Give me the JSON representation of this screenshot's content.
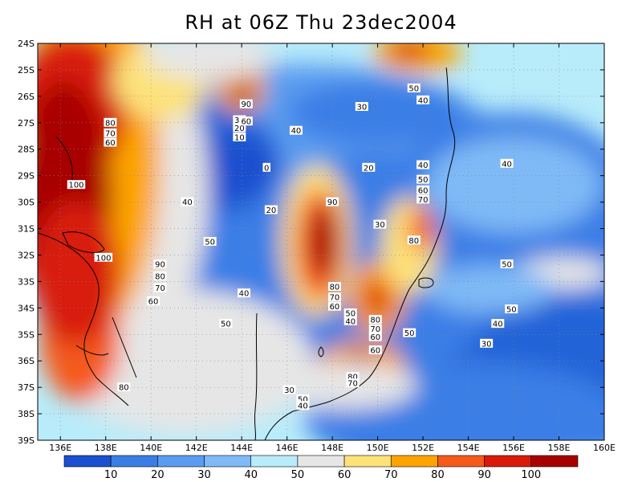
{
  "title": "RH at 06Z Thu 23dec2004",
  "colors": {
    "bands": [
      "#1a4fcf",
      "#2464d8",
      "#3a7ee6",
      "#5a9cf0",
      "#7fbaf7",
      "#b8ecfa",
      "#e6e6e6",
      "#fde27a",
      "#fda400",
      "#f55a1a",
      "#d81a0a",
      "#a80000"
    ],
    "coast": "#000000",
    "grid": "#888888"
  },
  "map": {
    "lat_labels": [
      "24S",
      "25S",
      "26S",
      "27S",
      "28S",
      "29S",
      "30S",
      "31S",
      "32S",
      "33S",
      "34S",
      "35S",
      "36S",
      "37S",
      "38S",
      "39S"
    ],
    "lon_labels": [
      "136E",
      "138E",
      "140E",
      "142E",
      "144E",
      "146E",
      "148E",
      "150E",
      "152E",
      "154E",
      "156E",
      "158E",
      "160E"
    ]
  },
  "colorbar": {
    "labels": [
      "10",
      "20",
      "30",
      "40",
      "50",
      "60",
      "70",
      "80",
      "90",
      "100"
    ]
  },
  "contour_labels": [
    {
      "text": "80",
      "lon": 138.2,
      "lat": 27.0
    },
    {
      "text": "70",
      "lon": 138.2,
      "lat": 27.4
    },
    {
      "text": "60",
      "lon": 138.2,
      "lat": 27.75
    },
    {
      "text": "100",
      "lon": 136.7,
      "lat": 29.35
    },
    {
      "text": "100",
      "lon": 137.9,
      "lat": 32.1
    },
    {
      "text": "90",
      "lon": 140.4,
      "lat": 32.35
    },
    {
      "text": "80",
      "lon": 140.4,
      "lat": 32.8
    },
    {
      "text": "70",
      "lon": 140.4,
      "lat": 33.25
    },
    {
      "text": "60",
      "lon": 140.1,
      "lat": 33.75
    },
    {
      "text": "80",
      "lon": 138.8,
      "lat": 37.0
    },
    {
      "text": "40",
      "lon": 141.6,
      "lat": 30.0
    },
    {
      "text": "50",
      "lon": 142.6,
      "lat": 31.5
    },
    {
      "text": "40",
      "lon": 144.1,
      "lat": 33.45
    },
    {
      "text": "50",
      "lon": 143.3,
      "lat": 34.6
    },
    {
      "text": "30",
      "lon": 146.1,
      "lat": 37.1
    },
    {
      "text": "20",
      "lon": 145.3,
      "lat": 30.3
    },
    {
      "text": "0",
      "lon": 145.1,
      "lat": 28.7
    },
    {
      "text": "10",
      "lon": 143.9,
      "lat": 27.55
    },
    {
      "text": "20",
      "lon": 143.9,
      "lat": 27.2
    },
    {
      "text": "30",
      "lon": 143.9,
      "lat": 26.9
    },
    {
      "text": "90",
      "lon": 144.2,
      "lat": 26.3
    },
    {
      "text": "60",
      "lon": 144.2,
      "lat": 26.95
    },
    {
      "text": "40",
      "lon": 146.4,
      "lat": 27.3
    },
    {
      "text": "30",
      "lon": 149.3,
      "lat": 26.4
    },
    {
      "text": "50",
      "lon": 151.6,
      "lat": 25.7
    },
    {
      "text": "40",
      "lon": 152.0,
      "lat": 26.15
    },
    {
      "text": "20",
      "lon": 149.6,
      "lat": 28.7
    },
    {
      "text": "40",
      "lon": 152.0,
      "lat": 28.6
    },
    {
      "text": "50",
      "lon": 152.0,
      "lat": 29.15
    },
    {
      "text": "60",
      "lon": 152.0,
      "lat": 29.55
    },
    {
      "text": "70",
      "lon": 152.0,
      "lat": 29.9
    },
    {
      "text": "40",
      "lon": 155.7,
      "lat": 28.55
    },
    {
      "text": "90",
      "lon": 148.0,
      "lat": 30.0
    },
    {
      "text": "30",
      "lon": 150.1,
      "lat": 30.85
    },
    {
      "text": "80",
      "lon": 151.6,
      "lat": 31.45
    },
    {
      "text": "80",
      "lon": 148.1,
      "lat": 33.2
    },
    {
      "text": "70",
      "lon": 148.1,
      "lat": 33.6
    },
    {
      "text": "60",
      "lon": 148.1,
      "lat": 33.95
    },
    {
      "text": "50",
      "lon": 148.8,
      "lat": 34.2
    },
    {
      "text": "40",
      "lon": 148.8,
      "lat": 34.5
    },
    {
      "text": "80",
      "lon": 149.9,
      "lat": 34.45
    },
    {
      "text": "70",
      "lon": 149.9,
      "lat": 34.8
    },
    {
      "text": "60",
      "lon": 149.9,
      "lat": 35.1
    },
    {
      "text": "60",
      "lon": 149.9,
      "lat": 35.6
    },
    {
      "text": "50",
      "lon": 151.4,
      "lat": 34.95
    },
    {
      "text": "50",
      "lon": 155.7,
      "lat": 32.35
    },
    {
      "text": "50",
      "lon": 155.9,
      "lat": 34.05
    },
    {
      "text": "40",
      "lon": 155.3,
      "lat": 34.6
    },
    {
      "text": "30",
      "lon": 154.8,
      "lat": 35.35
    },
    {
      "text": "80",
      "lon": 148.9,
      "lat": 36.6
    },
    {
      "text": "70",
      "lon": 148.9,
      "lat": 36.85
    },
    {
      "text": "50",
      "lon": 146.7,
      "lat": 37.45
    },
    {
      "text": "40",
      "lon": 146.7,
      "lat": 37.7
    }
  ]
}
